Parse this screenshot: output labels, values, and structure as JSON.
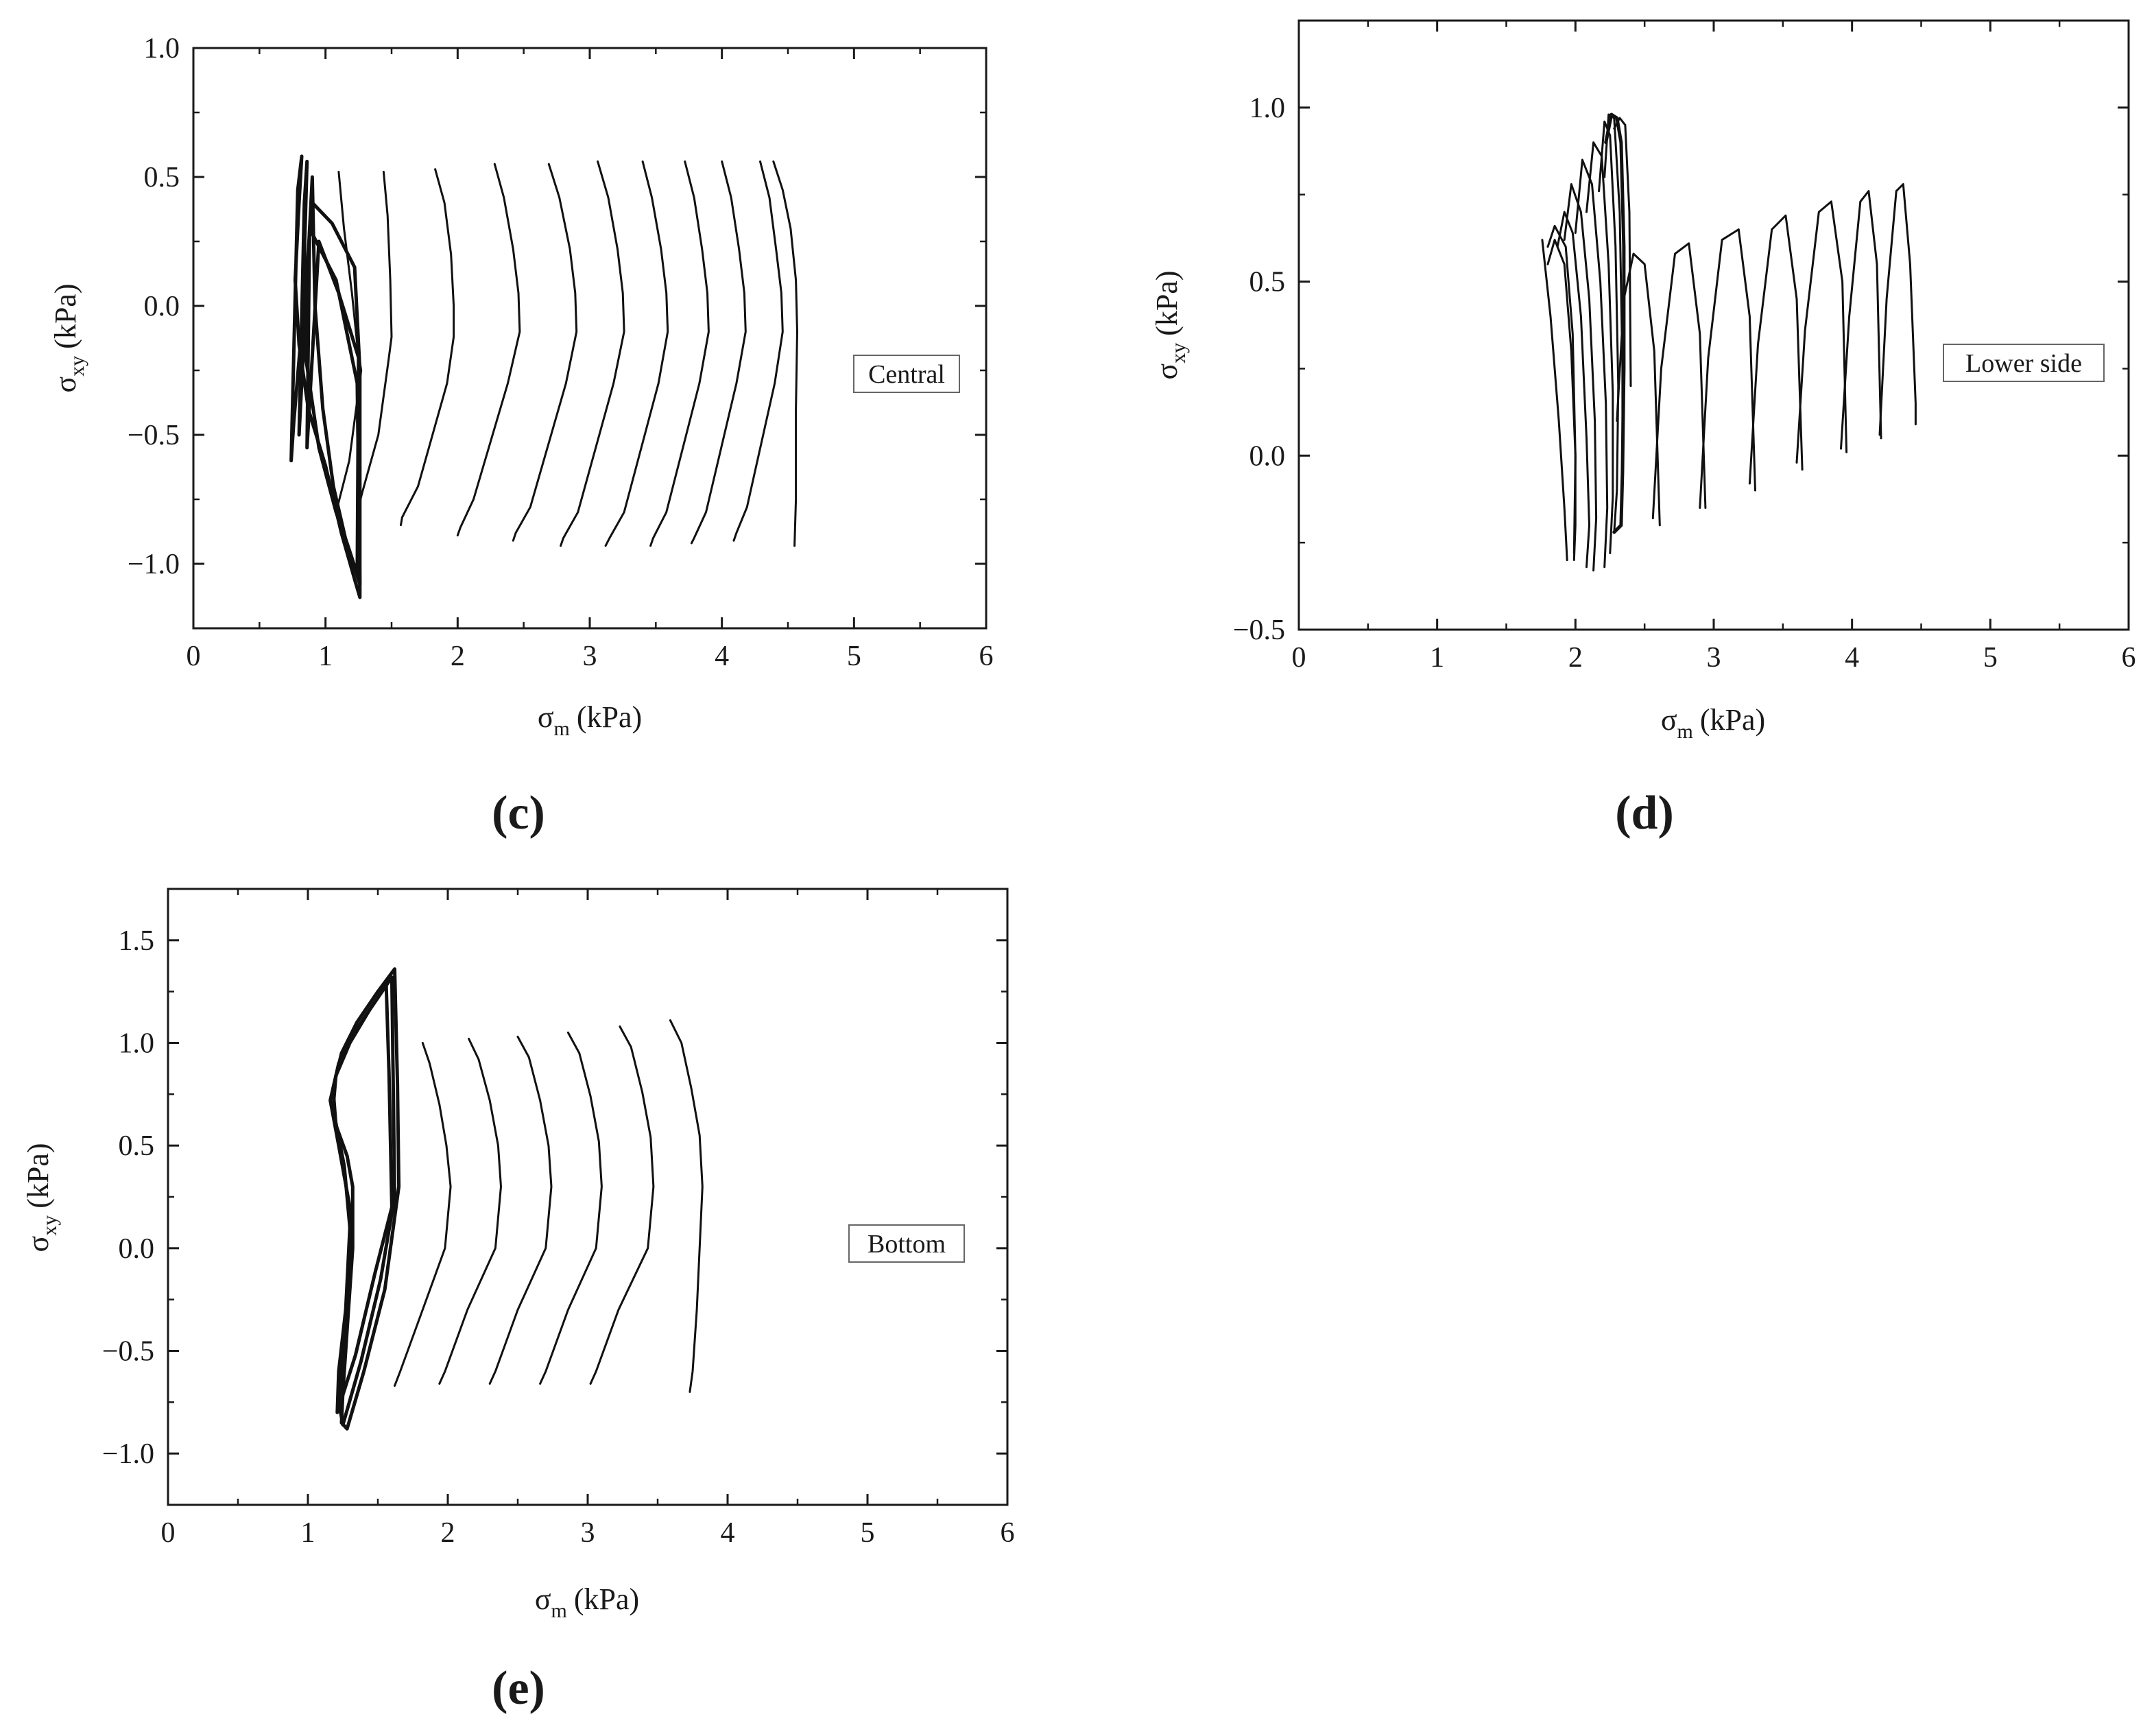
{
  "chart_data": [
    {
      "type": "line",
      "panel_label": "(c)",
      "annotation": "Central",
      "xlabel": {
        "symbol": "σ",
        "sub": "m",
        "unit": "(kPa)"
      },
      "ylabel": {
        "symbol": "σ",
        "sub": "xy",
        "unit": "(kPa)"
      },
      "xlim": [
        0,
        6
      ],
      "ylim": [
        -1.25,
        1.0
      ],
      "xticks": [
        0,
        1,
        2,
        3,
        4,
        5,
        6
      ],
      "yticks": [
        1.0,
        0.5,
        0.0,
        -0.5,
        -1.0
      ],
      "ytick_labels": [
        "1.0",
        "0.5",
        "0.0",
        "−0.5",
        "−1.0"
      ],
      "grid": false,
      "series": [
        {
          "kind": "dense",
          "x": [
            0.82,
            0.8,
            0.77,
            0.8,
            0.87,
            1.0,
            1.12,
            1.22,
            1.26,
            1.26,
            1.26,
            1.22,
            1.05,
            0.9,
            0.76,
            0.74,
            0.79,
            0.82
          ],
          "y": [
            0.58,
            0.4,
            0.1,
            -0.15,
            -0.4,
            -0.62,
            -0.88,
            -1.06,
            -1.13,
            -1.08,
            -0.25,
            0.15,
            0.32,
            0.4,
            -0.45,
            -0.6,
            0.45,
            0.58
          ]
        },
        {
          "kind": "dense",
          "x": [
            0.86,
            0.84,
            0.85,
            0.95,
            1.08,
            1.2,
            1.26,
            1.24,
            1.08,
            0.88,
            0.8,
            0.84,
            0.86
          ],
          "y": [
            0.56,
            0.2,
            -0.2,
            -0.55,
            -0.8,
            -0.98,
            -1.08,
            -0.3,
            0.1,
            0.3,
            -0.5,
            0.4,
            0.56
          ]
        },
        {
          "kind": "dense",
          "x": [
            0.9,
            0.92,
            0.98,
            1.06,
            1.15,
            1.24,
            1.25,
            1.1,
            0.95,
            0.86,
            0.88,
            0.9
          ],
          "y": [
            0.5,
            0.0,
            -0.4,
            -0.7,
            -0.9,
            -1.04,
            -0.2,
            0.05,
            0.25,
            -0.55,
            0.3,
            0.5
          ]
        },
        {
          "x": [
            1.1,
            1.14,
            1.2,
            1.24,
            1.27,
            1.18,
            1.08
          ],
          "y": [
            0.52,
            0.3,
            0.05,
            -0.15,
            -0.25,
            -0.6,
            -0.8
          ]
        },
        {
          "x": [
            1.44,
            1.47,
            1.49,
            1.5,
            1.48,
            1.4,
            1.28,
            1.25
          ],
          "y": [
            0.52,
            0.35,
            0.1,
            -0.12,
            -0.2,
            -0.5,
            -0.72,
            -0.78
          ]
        },
        {
          "x": [
            1.83,
            1.9,
            1.95,
            1.97,
            1.97,
            1.92,
            1.7,
            1.58,
            1.57
          ],
          "y": [
            0.53,
            0.4,
            0.2,
            0.0,
            -0.12,
            -0.3,
            -0.7,
            -0.82,
            -0.85
          ]
        },
        {
          "x": [
            2.28,
            2.35,
            2.42,
            2.46,
            2.47,
            2.38,
            2.12,
            2.02,
            2.0
          ],
          "y": [
            0.55,
            0.42,
            0.22,
            0.05,
            -0.1,
            -0.3,
            -0.75,
            -0.86,
            -0.89
          ]
        },
        {
          "x": [
            2.69,
            2.77,
            2.85,
            2.89,
            2.9,
            2.82,
            2.55,
            2.44,
            2.42
          ],
          "y": [
            0.55,
            0.42,
            0.22,
            0.05,
            -0.1,
            -0.3,
            -0.78,
            -0.88,
            -0.91
          ]
        },
        {
          "x": [
            3.06,
            3.14,
            3.21,
            3.25,
            3.26,
            3.18,
            2.91,
            2.8,
            2.78
          ],
          "y": [
            0.56,
            0.42,
            0.22,
            0.05,
            -0.1,
            -0.3,
            -0.8,
            -0.9,
            -0.93
          ]
        },
        {
          "x": [
            3.4,
            3.47,
            3.54,
            3.58,
            3.59,
            3.52,
            3.26,
            3.15,
            3.12
          ],
          "y": [
            0.56,
            0.42,
            0.22,
            0.05,
            -0.1,
            -0.3,
            -0.8,
            -0.9,
            -0.93
          ]
        },
        {
          "x": [
            3.72,
            3.79,
            3.85,
            3.89,
            3.9,
            3.83,
            3.58,
            3.48,
            3.46
          ],
          "y": [
            0.56,
            0.42,
            0.22,
            0.05,
            -0.1,
            -0.3,
            -0.8,
            -0.9,
            -0.93
          ]
        },
        {
          "x": [
            4.0,
            4.07,
            4.13,
            4.17,
            4.18,
            4.11,
            3.88,
            3.79,
            3.77
          ],
          "y": [
            0.56,
            0.42,
            0.22,
            0.05,
            -0.1,
            -0.3,
            -0.8,
            -0.9,
            -0.92
          ]
        },
        {
          "x": [
            4.29,
            4.36,
            4.41,
            4.45,
            4.46,
            4.4,
            4.19,
            4.11,
            4.09
          ],
          "y": [
            0.56,
            0.42,
            0.22,
            0.05,
            -0.1,
            -0.3,
            -0.78,
            -0.88,
            -0.91
          ]
        },
        {
          "x": [
            4.39,
            4.46,
            4.52,
            4.56,
            4.57,
            4.56,
            4.56,
            4.55
          ],
          "y": [
            0.56,
            0.45,
            0.3,
            0.1,
            -0.1,
            -0.4,
            -0.75,
            -0.93
          ]
        }
      ]
    },
    {
      "type": "line",
      "panel_label": "(d)",
      "annotation": "Lower side",
      "xlabel": {
        "symbol": "σ",
        "sub": "m",
        "unit": "(kPa)"
      },
      "ylabel": {
        "symbol": "σ",
        "sub": "xy",
        "unit": "(kPa)"
      },
      "xlim": [
        0,
        6
      ],
      "ylim": [
        -0.5,
        1.25
      ],
      "xticks": [
        0,
        1,
        2,
        3,
        4,
        5,
        6
      ],
      "yticks": [
        1.0,
        0.5,
        0.0,
        -0.5
      ],
      "ytick_labels": [
        "1.0",
        "0.5",
        "0.0",
        "−0.5"
      ],
      "grid": false,
      "series": [
        {
          "x": [
            1.76,
            1.82,
            1.88,
            1.92,
            1.94
          ],
          "y": [
            0.62,
            0.4,
            0.1,
            -0.15,
            -0.3
          ]
        },
        {
          "x": [
            1.8,
            1.85,
            1.92,
            1.97,
            2.0,
            2.0,
            1.99
          ],
          "y": [
            0.55,
            0.62,
            0.55,
            0.3,
            0.0,
            -0.2,
            -0.3
          ]
        },
        {
          "x": [
            1.8,
            1.85,
            1.93,
            1.98,
            2.0,
            1.99
          ],
          "y": [
            0.6,
            0.66,
            0.6,
            0.35,
            0.0,
            -0.28
          ]
        },
        {
          "x": [
            1.87,
            1.92,
            1.98,
            2.04,
            2.08,
            2.1,
            2.08
          ],
          "y": [
            0.6,
            0.7,
            0.64,
            0.4,
            0.05,
            -0.2,
            -0.32
          ]
        },
        {
          "x": [
            1.92,
            1.97,
            2.04,
            2.1,
            2.14,
            2.15,
            2.13
          ],
          "y": [
            0.62,
            0.78,
            0.7,
            0.45,
            0.1,
            -0.18,
            -0.33
          ]
        },
        {
          "x": [
            2.0,
            2.05,
            2.12,
            2.18,
            2.22,
            2.23,
            2.21
          ],
          "y": [
            0.64,
            0.85,
            0.78,
            0.5,
            0.15,
            -0.15,
            -0.32
          ]
        },
        {
          "x": [
            2.08,
            2.13,
            2.19,
            2.24,
            2.27,
            2.27,
            2.25
          ],
          "y": [
            0.7,
            0.9,
            0.86,
            0.55,
            0.18,
            -0.12,
            -0.28
          ]
        },
        {
          "x": [
            2.17,
            2.21,
            2.25,
            2.29,
            2.31,
            2.3,
            2.28
          ],
          "y": [
            0.76,
            0.96,
            0.92,
            0.6,
            0.2,
            -0.1,
            -0.22
          ]
        },
        {
          "x": [
            2.21,
            2.24,
            2.28,
            2.32,
            2.34,
            2.34,
            2.33
          ],
          "y": [
            0.8,
            0.98,
            0.97,
            0.7,
            0.25,
            -0.05,
            -0.15
          ]
        },
        {
          "kind": "dense",
          "x": [
            2.22,
            2.26,
            2.3,
            2.33,
            2.35,
            2.35,
            2.34,
            2.33,
            2.28
          ],
          "y": [
            0.9,
            0.98,
            0.97,
            0.9,
            0.6,
            0.25,
            -0.05,
            -0.2,
            -0.22
          ]
        },
        {
          "x": [
            2.28,
            2.32,
            2.36,
            2.39,
            2.4
          ],
          "y": [
            0.94,
            0.97,
            0.95,
            0.7,
            0.2
          ]
        },
        {
          "x": [
            2.3,
            2.35,
            2.42,
            2.5,
            2.57,
            2.61
          ],
          "y": [
            0.1,
            0.45,
            0.58,
            0.55,
            0.3,
            -0.2
          ]
        },
        {
          "x": [
            2.56,
            2.62,
            2.72,
            2.82,
            2.9,
            2.94
          ],
          "y": [
            -0.18,
            0.25,
            0.58,
            0.61,
            0.35,
            -0.15
          ]
        },
        {
          "x": [
            2.9,
            2.96,
            3.06,
            3.18,
            3.26,
            3.3
          ],
          "y": [
            -0.15,
            0.28,
            0.62,
            0.65,
            0.4,
            -0.1
          ]
        },
        {
          "x": [
            3.26,
            3.32,
            3.42,
            3.52,
            3.6,
            3.64
          ],
          "y": [
            -0.08,
            0.32,
            0.65,
            0.69,
            0.45,
            -0.04
          ]
        },
        {
          "x": [
            3.6,
            3.66,
            3.76,
            3.85,
            3.93,
            3.96
          ],
          "y": [
            -0.02,
            0.36,
            0.7,
            0.73,
            0.5,
            0.01
          ]
        },
        {
          "x": [
            3.92,
            3.98,
            4.06,
            4.12,
            4.18,
            4.21
          ],
          "y": [
            0.02,
            0.4,
            0.73,
            0.76,
            0.55,
            0.05
          ]
        },
        {
          "x": [
            4.2,
            4.25,
            4.32,
            4.37,
            4.42,
            4.46,
            4.46
          ],
          "y": [
            0.06,
            0.45,
            0.76,
            0.78,
            0.55,
            0.15,
            0.09
          ]
        }
      ]
    },
    {
      "type": "line",
      "panel_label": "(e)",
      "annotation": "Bottom",
      "xlabel": {
        "symbol": "σ",
        "sub": "m",
        "unit": "(kPa)"
      },
      "ylabel": {
        "symbol": "σ",
        "sub": "xy",
        "unit": "(kPa)"
      },
      "xlim": [
        0,
        6
      ],
      "ylim": [
        -1.25,
        1.75
      ],
      "xticks": [
        0,
        1,
        2,
        3,
        4,
        5,
        6
      ],
      "yticks": [
        1.5,
        1.0,
        0.5,
        0.0,
        -0.5,
        -1.0
      ],
      "ytick_labels": [
        "1.5",
        "1.0",
        "0.5",
        "0.0",
        "−0.5",
        "−1.0"
      ],
      "grid": false,
      "series": [
        {
          "kind": "dense",
          "x": [
            1.62,
            1.5,
            1.35,
            1.24,
            1.18,
            1.2,
            1.28,
            1.32,
            1.32,
            1.28,
            1.25,
            1.24,
            1.28,
            1.4,
            1.55,
            1.65,
            1.64,
            1.62
          ],
          "y": [
            1.36,
            1.25,
            1.1,
            0.95,
            0.78,
            0.6,
            0.45,
            0.3,
            0.0,
            -0.4,
            -0.7,
            -0.85,
            -0.88,
            -0.6,
            -0.2,
            0.3,
            0.8,
            1.36
          ]
        },
        {
          "kind": "dense",
          "x": [
            1.6,
            1.48,
            1.33,
            1.22,
            1.16,
            1.22,
            1.3,
            1.3,
            1.26,
            1.22,
            1.25,
            1.38,
            1.52,
            1.62,
            1.61,
            1.6
          ],
          "y": [
            1.32,
            1.2,
            1.05,
            0.9,
            0.72,
            0.5,
            0.2,
            -0.1,
            -0.45,
            -0.75,
            -0.86,
            -0.55,
            -0.15,
            0.25,
            0.8,
            1.32
          ]
        },
        {
          "kind": "dense",
          "x": [
            1.56,
            1.44,
            1.3,
            1.2,
            1.18,
            1.26,
            1.3,
            1.27,
            1.22,
            1.21,
            1.34,
            1.48,
            1.6,
            1.58,
            1.56
          ],
          "y": [
            1.28,
            1.16,
            1.0,
            0.84,
            0.68,
            0.4,
            0.1,
            -0.3,
            -0.6,
            -0.8,
            -0.52,
            -0.12,
            0.2,
            0.85,
            1.28
          ]
        },
        {
          "x": [
            1.82,
            1.87,
            1.94,
            1.99,
            2.02,
            1.98,
            1.82,
            1.66,
            1.62
          ],
          "y": [
            1.0,
            0.9,
            0.7,
            0.5,
            0.3,
            0.0,
            -0.3,
            -0.6,
            -0.67
          ]
        },
        {
          "x": [
            2.15,
            2.22,
            2.3,
            2.36,
            2.38,
            2.34,
            2.14,
            1.98,
            1.94
          ],
          "y": [
            1.02,
            0.92,
            0.72,
            0.5,
            0.3,
            0.0,
            -0.3,
            -0.6,
            -0.66
          ]
        },
        {
          "x": [
            2.5,
            2.58,
            2.66,
            2.72,
            2.74,
            2.7,
            2.5,
            2.34,
            2.3
          ],
          "y": [
            1.03,
            0.93,
            0.72,
            0.5,
            0.3,
            0.0,
            -0.3,
            -0.6,
            -0.66
          ]
        },
        {
          "x": [
            2.86,
            2.94,
            3.02,
            3.08,
            3.1,
            3.06,
            2.86,
            2.7,
            2.66
          ],
          "y": [
            1.05,
            0.95,
            0.74,
            0.52,
            0.3,
            0.0,
            -0.3,
            -0.6,
            -0.66
          ]
        },
        {
          "x": [
            3.23,
            3.31,
            3.39,
            3.45,
            3.47,
            3.43,
            3.22,
            3.06,
            3.02
          ],
          "y": [
            1.08,
            0.98,
            0.76,
            0.54,
            0.3,
            0.0,
            -0.3,
            -0.6,
            -0.66
          ]
        },
        {
          "x": [
            3.59,
            3.67,
            3.74,
            3.8,
            3.82,
            3.8,
            3.78,
            3.75,
            3.73
          ],
          "y": [
            1.11,
            1.0,
            0.78,
            0.55,
            0.3,
            0.0,
            -0.3,
            -0.6,
            -0.7
          ]
        }
      ]
    }
  ]
}
